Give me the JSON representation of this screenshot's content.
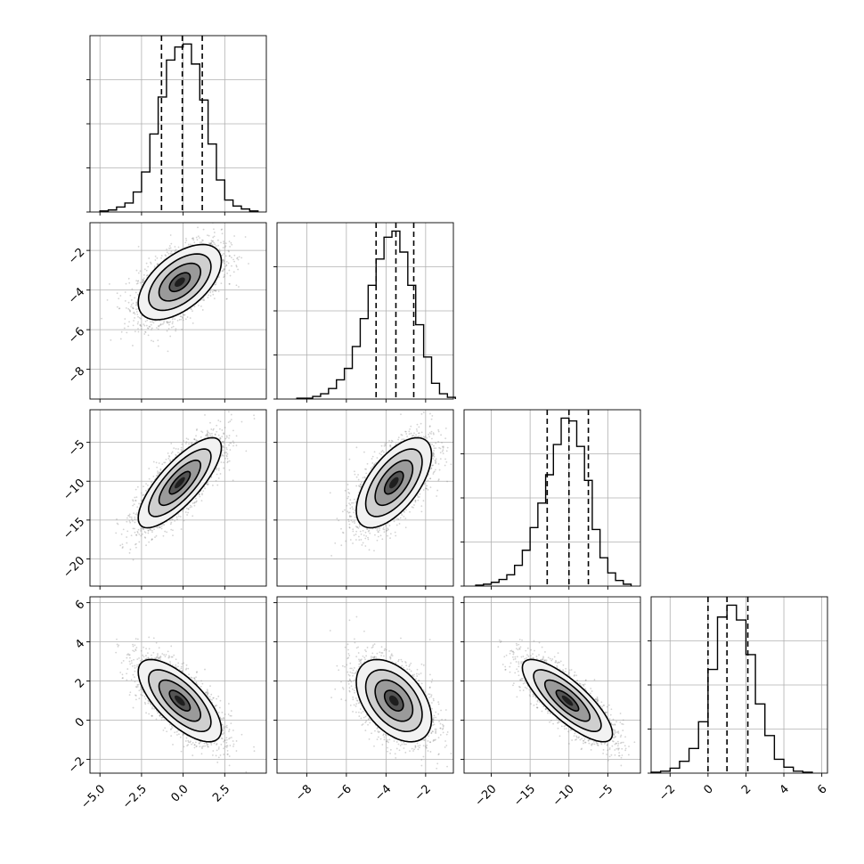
{
  "figure": {
    "type": "corner-plot",
    "colors": {
      "frame": "#000000",
      "grid": "#b0b0b0",
      "points": "#808080",
      "background": "#ffffff"
    }
  },
  "chart_data": [
    {
      "type": "histogram",
      "panel": "hist-p1",
      "xlim": [
        -5.6,
        5.0
      ],
      "x": [
        -4.75,
        -4.25,
        -3.75,
        -3.25,
        -2.75,
        -2.25,
        -1.75,
        -1.25,
        -0.75,
        -0.25,
        0.25,
        0.75,
        1.25,
        1.75,
        2.25,
        2.75,
        3.25,
        3.75,
        4.25
      ],
      "counts": [
        1,
        2,
        5,
        9,
        20,
        40,
        78,
        115,
        152,
        165,
        168,
        148,
        112,
        68,
        32,
        12,
        6,
        3,
        1
      ],
      "quantiles": [
        -1.3,
        -0.05,
        1.15
      ],
      "grid": true
    },
    {
      "type": "histogram",
      "panel": "hist-p2",
      "xlim": [
        -9.5,
        -0.6
      ],
      "x": [
        -8.3,
        -7.9,
        -7.5,
        -7.1,
        -6.7,
        -6.3,
        -5.9,
        -5.5,
        -5.1,
        -4.7,
        -4.3,
        -3.9,
        -3.5,
        -3.1,
        -2.7,
        -2.3,
        -1.9,
        -1.5,
        -1.1,
        -0.7
      ],
      "counts": [
        1,
        1,
        3,
        6,
        12,
        22,
        35,
        60,
        92,
        130,
        160,
        185,
        192,
        168,
        130,
        85,
        48,
        18,
        6,
        2
      ],
      "quantiles": [
        -4.5,
        -3.5,
        -2.6
      ],
      "grid": true
    },
    {
      "type": "histogram",
      "panel": "hist-p3",
      "xlim": [
        -23.5,
        -0.8
      ],
      "x": [
        -21.5,
        -20.5,
        -19.5,
        -18.5,
        -17.5,
        -16.5,
        -15.5,
        -14.5,
        -13.5,
        -12.5,
        -11.5,
        -10.5,
        -9.5,
        -8.5,
        -7.5,
        -6.5,
        -5.5,
        -4.5,
        -3.5,
        -2.5
      ],
      "counts": [
        1,
        2,
        4,
        7,
        12,
        22,
        38,
        62,
        88,
        118,
        150,
        178,
        175,
        148,
        112,
        60,
        30,
        14,
        6,
        2
      ],
      "quantiles": [
        -12.8,
        -10.0,
        -7.5
      ],
      "grid": true
    },
    {
      "type": "histogram",
      "panel": "hist-p4",
      "xlim": [
        -3.0,
        6.3
      ],
      "x": [
        -2.75,
        -2.25,
        -1.75,
        -1.25,
        -0.75,
        -0.25,
        0.25,
        0.75,
        1.25,
        1.75,
        2.25,
        2.75,
        3.25,
        3.75,
        4.25,
        4.75,
        5.25
      ],
      "counts": [
        1,
        2,
        5,
        12,
        25,
        52,
        105,
        158,
        170,
        155,
        120,
        70,
        38,
        14,
        6,
        2,
        1
      ],
      "quantiles": [
        0.0,
        1.0,
        2.1
      ],
      "grid": true
    },
    {
      "type": "scatter+contour",
      "panel": "p1-p2",
      "xlim": [
        -5.6,
        5.0
      ],
      "ylim": [
        -9.5,
        -0.6
      ],
      "center": [
        -0.2,
        -3.6
      ],
      "sd": [
        1.25,
        0.95
      ],
      "rho": 0.55,
      "contours": [
        0.5,
        1.0,
        1.5,
        2.0
      ],
      "grid": true
    },
    {
      "type": "scatter+contour",
      "panel": "p1-p3",
      "xlim": [
        -5.6,
        5.0
      ],
      "ylim": [
        -23.5,
        -0.8
      ],
      "center": [
        -0.2,
        -10.2
      ],
      "sd": [
        1.25,
        2.9
      ],
      "rho": 0.78,
      "contours": [
        0.5,
        1.0,
        1.5,
        2.0
      ],
      "grid": true
    },
    {
      "type": "scatter+contour",
      "panel": "p2-p3",
      "xlim": [
        -9.5,
        -0.6
      ],
      "ylim": [
        -23.5,
        -0.8
      ],
      "center": [
        -3.6,
        -10.2
      ],
      "sd": [
        0.95,
        2.9
      ],
      "rho": 0.62,
      "contours": [
        0.5,
        1.0,
        1.5,
        2.0
      ],
      "grid": true
    },
    {
      "type": "scatter+contour",
      "panel": "p1-p4",
      "xlim": [
        -5.6,
        5.0
      ],
      "ylim": [
        -2.7,
        6.3
      ],
      "center": [
        -0.2,
        1.0
      ],
      "sd": [
        1.25,
        1.05
      ],
      "rho": -0.7,
      "contours": [
        0.5,
        1.0,
        1.5,
        2.0
      ],
      "grid": true
    },
    {
      "type": "scatter+contour",
      "panel": "p2-p4",
      "xlim": [
        -9.5,
        -0.6
      ],
      "ylim": [
        -2.7,
        6.3
      ],
      "center": [
        -3.6,
        1.0
      ],
      "sd": [
        0.95,
        1.05
      ],
      "rho": -0.45,
      "contours": [
        0.5,
        1.0,
        1.5,
        2.0
      ],
      "grid": true
    },
    {
      "type": "scatter+contour",
      "panel": "p3-p4",
      "xlim": [
        -23.5,
        -0.8
      ],
      "ylim": [
        -2.7,
        6.3
      ],
      "center": [
        -10.2,
        1.0
      ],
      "sd": [
        2.9,
        1.05
      ],
      "rho": -0.8,
      "contours": [
        0.5,
        1.0,
        1.5,
        2.0
      ],
      "grid": true
    }
  ],
  "axes": {
    "col1": {
      "ticks": [
        -5.0,
        -2.5,
        0.0,
        2.5
      ],
      "labels": [
        "−5.0",
        "−2.5",
        "0.0",
        "2.5"
      ]
    },
    "col2": {
      "ticks": [
        -8,
        -6,
        -4,
        -2
      ],
      "labels": [
        "−8",
        "−6",
        "−4",
        "−2"
      ]
    },
    "col3": {
      "ticks": [
        -20,
        -15,
        -10,
        -5
      ],
      "labels": [
        "−20",
        "−15",
        "−10",
        "−5"
      ]
    },
    "col4": {
      "ticks": [
        -2,
        0,
        2,
        4,
        6
      ],
      "labels": [
        "−2",
        "0",
        "2",
        "4",
        "6"
      ]
    },
    "row2": {
      "ticks": [
        -8,
        -6,
        -4,
        -2
      ],
      "labels": [
        "−8",
        "−6",
        "−4",
        "−2"
      ]
    },
    "row3": {
      "ticks": [
        -20,
        -15,
        -10,
        -5
      ],
      "labels": [
        "−20",
        "−15",
        "−10",
        "−5"
      ]
    },
    "row4": {
      "ticks": [
        -2,
        0,
        2,
        4,
        6
      ],
      "labels": [
        "−2",
        "0",
        "2",
        "4",
        "6"
      ]
    }
  }
}
